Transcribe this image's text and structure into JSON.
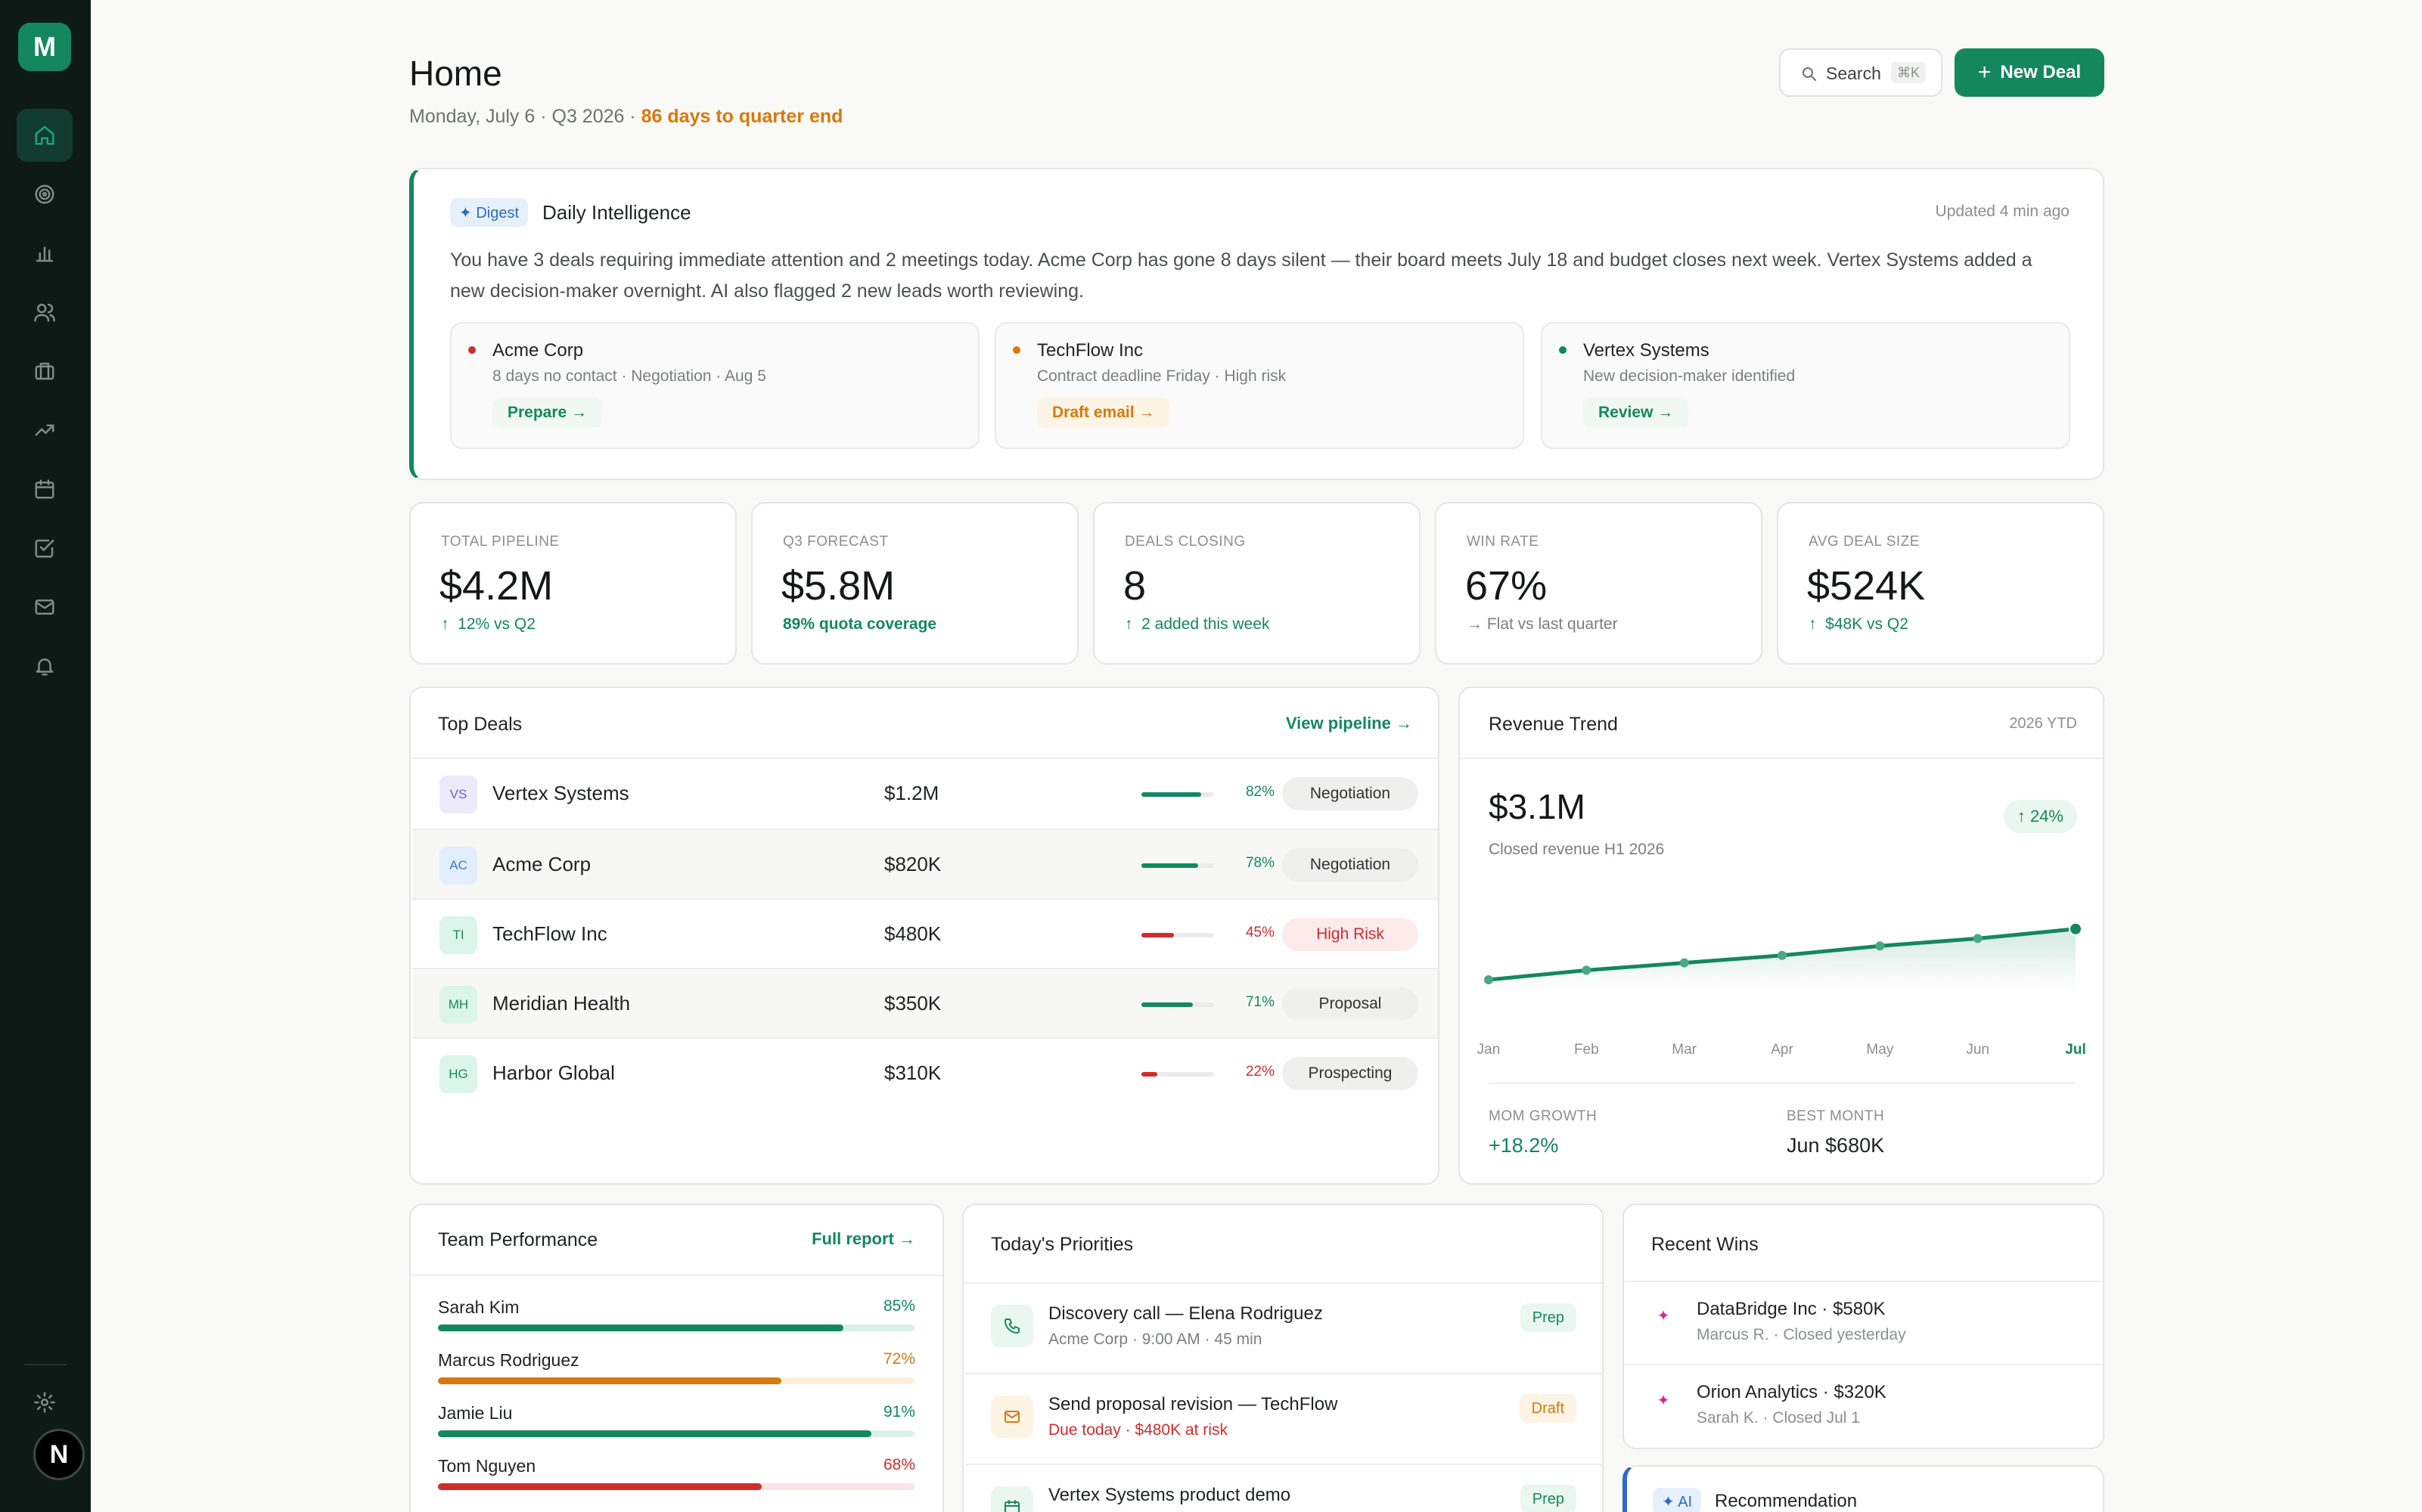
{
  "app": {
    "logo_letter": "M",
    "user_initial": "N"
  },
  "sidebar": {
    "items": [
      {
        "name": "home",
        "icon": "home-icon",
        "active": true
      },
      {
        "name": "targets",
        "icon": "target-icon"
      },
      {
        "name": "analytics",
        "icon": "bar-chart-icon"
      },
      {
        "name": "contacts",
        "icon": "users-icon"
      },
      {
        "name": "deals",
        "icon": "briefcase-icon"
      },
      {
        "name": "trends",
        "icon": "trending-up-icon"
      },
      {
        "name": "calendar",
        "icon": "calendar-icon"
      },
      {
        "name": "tasks",
        "icon": "checkbox-icon"
      },
      {
        "name": "mail",
        "icon": "mail-icon"
      },
      {
        "name": "notifications",
        "icon": "bell-icon"
      }
    ],
    "settings_icon": "gear-icon"
  },
  "header": {
    "title": "Home",
    "subtitle": "Monday, July 6 · Q3 2026 · ",
    "quarter_end": "86 days to quarter end",
    "search_label": "Search",
    "search_shortcut": "⌘K",
    "new_deal_label": "New Deal"
  },
  "digest": {
    "badge": "✦ Digest",
    "title": "Daily Intelligence",
    "updated": "Updated 4 min ago",
    "body": "You have 3 deals requiring immediate attention and 2 meetings today. Acme Corp has gone 8 days silent — their board meets July 18 and budget closes next week. Vertex Systems added a new decision-maker overnight. AI also flagged 2 new leads worth reviewing.",
    "insights": [
      {
        "name": "Acme Corp",
        "detail": "8 days no contact · Negotiation · Aug 5",
        "action": "Prepare →",
        "color": "#d12c2c"
      },
      {
        "name": "TechFlow Inc",
        "detail": "Contract deadline Friday · High risk",
        "action": "Draft email →",
        "color": "#d9780b"
      },
      {
        "name": "Vertex Systems",
        "detail": "New decision-maker identified",
        "action": "Review →",
        "color": "#14875f"
      }
    ]
  },
  "kpis": [
    {
      "label": "TOTAL PIPELINE",
      "value": "$4.2M",
      "delta": "12% vs Q2",
      "arrow": "↑",
      "tone": "green"
    },
    {
      "label": "Q3 FORECAST",
      "value": "$5.8M",
      "delta": "89% quota coverage",
      "arrow": "",
      "tone": "green"
    },
    {
      "label": "DEALS CLOSING",
      "value": "8",
      "delta": "2 added this week",
      "arrow": "↑",
      "tone": "green"
    },
    {
      "label": "WIN RATE",
      "value": "67%",
      "delta": "Flat vs last quarter",
      "arrow": "→",
      "tone": "muted"
    },
    {
      "label": "AVG DEAL SIZE",
      "value": "$524K",
      "delta": "$48K vs Q2",
      "arrow": "↑",
      "tone": "green"
    }
  ],
  "top_deals": {
    "title": "Top Deals",
    "link": "View pipeline →",
    "rows": [
      {
        "initials": "VS",
        "name": "Vertex Systems",
        "amount": "$1.2M",
        "pct": "82%",
        "value": 82,
        "stage": "Negotiation",
        "risk": false,
        "bg": "#ece9fb",
        "fg": "#6f5bd8"
      },
      {
        "initials": "AC",
        "name": "Acme Corp",
        "amount": "$820K",
        "pct": "78%",
        "value": 78,
        "stage": "Negotiation",
        "risk": false,
        "bg": "#e2eefb",
        "fg": "#3a7bd5"
      },
      {
        "initials": "TI",
        "name": "TechFlow Inc",
        "amount": "$480K",
        "pct": "45%",
        "value": 45,
        "stage": "High Risk",
        "risk": true,
        "bg": "#dcf5ea",
        "fg": "#14875f"
      },
      {
        "initials": "MH",
        "name": "Meridian Health",
        "amount": "$350K",
        "pct": "71%",
        "value": 71,
        "stage": "Proposal",
        "risk": false,
        "bg": "#dcf5ea",
        "fg": "#14875f"
      },
      {
        "initials": "HG",
        "name": "Harbor Global",
        "amount": "$310K",
        "pct": "22%",
        "value": 22,
        "stage": "Prospecting",
        "risk": true,
        "bg": "#dcf5ea",
        "fg": "#14875f"
      }
    ]
  },
  "revenue": {
    "title": "Revenue Trend",
    "period": "2026 YTD",
    "value": "$3.1M",
    "caption": "Closed revenue H1 2026",
    "change": "↑ 24%",
    "mom_label": "MOM GROWTH",
    "mom_value": "+18.2%",
    "best_label": "BEST MONTH",
    "best_value": "Jun $680K"
  },
  "chart_data": {
    "type": "area",
    "categories": [
      "Jan",
      "Feb",
      "Mar",
      "Apr",
      "May",
      "Jun",
      "Jul"
    ],
    "values": [
      1.0,
      1.9,
      2.6,
      3.3,
      4.2,
      4.9,
      5.8
    ],
    "ylim": [
      0,
      10
    ],
    "grid": false,
    "color": "#14875f"
  },
  "team": {
    "title": "Team Performance",
    "link": "Full report →",
    "members": [
      {
        "name": "Sarah Kim",
        "pct": "85%",
        "value": 85,
        "color": "#14875f",
        "track": "#dcf2e8"
      },
      {
        "name": "Marcus Rodriguez",
        "pct": "72%",
        "value": 72,
        "color": "#d9780b",
        "track": "#fdf0d8"
      },
      {
        "name": "Jamie Liu",
        "pct": "91%",
        "value": 91,
        "color": "#14875f",
        "track": "#dcf2e8"
      },
      {
        "name": "Tom Nguyen",
        "pct": "68%",
        "value": 68,
        "color": "#d12c2c",
        "track": "#fbe4e4"
      }
    ]
  },
  "priorities": {
    "title": "Today's Priorities",
    "items": [
      {
        "title": "Discovery call — Elena Rodriguez",
        "sub": "Acme Corp · 9:00 AM · 45 min",
        "tag": "Prep",
        "icon": "phone-icon"
      },
      {
        "title": "Send proposal revision — TechFlow",
        "sub": "Due today · $480K at risk",
        "tag": "Draft",
        "icon": "mail-icon"
      },
      {
        "title": "Vertex Systems product demo",
        "sub": "",
        "tag": "Prep",
        "icon": "calendar-icon"
      }
    ]
  },
  "wins": {
    "title": "Recent Wins",
    "items": [
      {
        "title": "DataBridge Inc · $580K",
        "sub": "Marcus R. · Closed yesterday"
      },
      {
        "title": "Orion Analytics · $320K",
        "sub": "Sarah K. · Closed Jul 1"
      }
    ]
  },
  "recommendation": {
    "badge": "✦ AI",
    "title": "Recommendation"
  }
}
